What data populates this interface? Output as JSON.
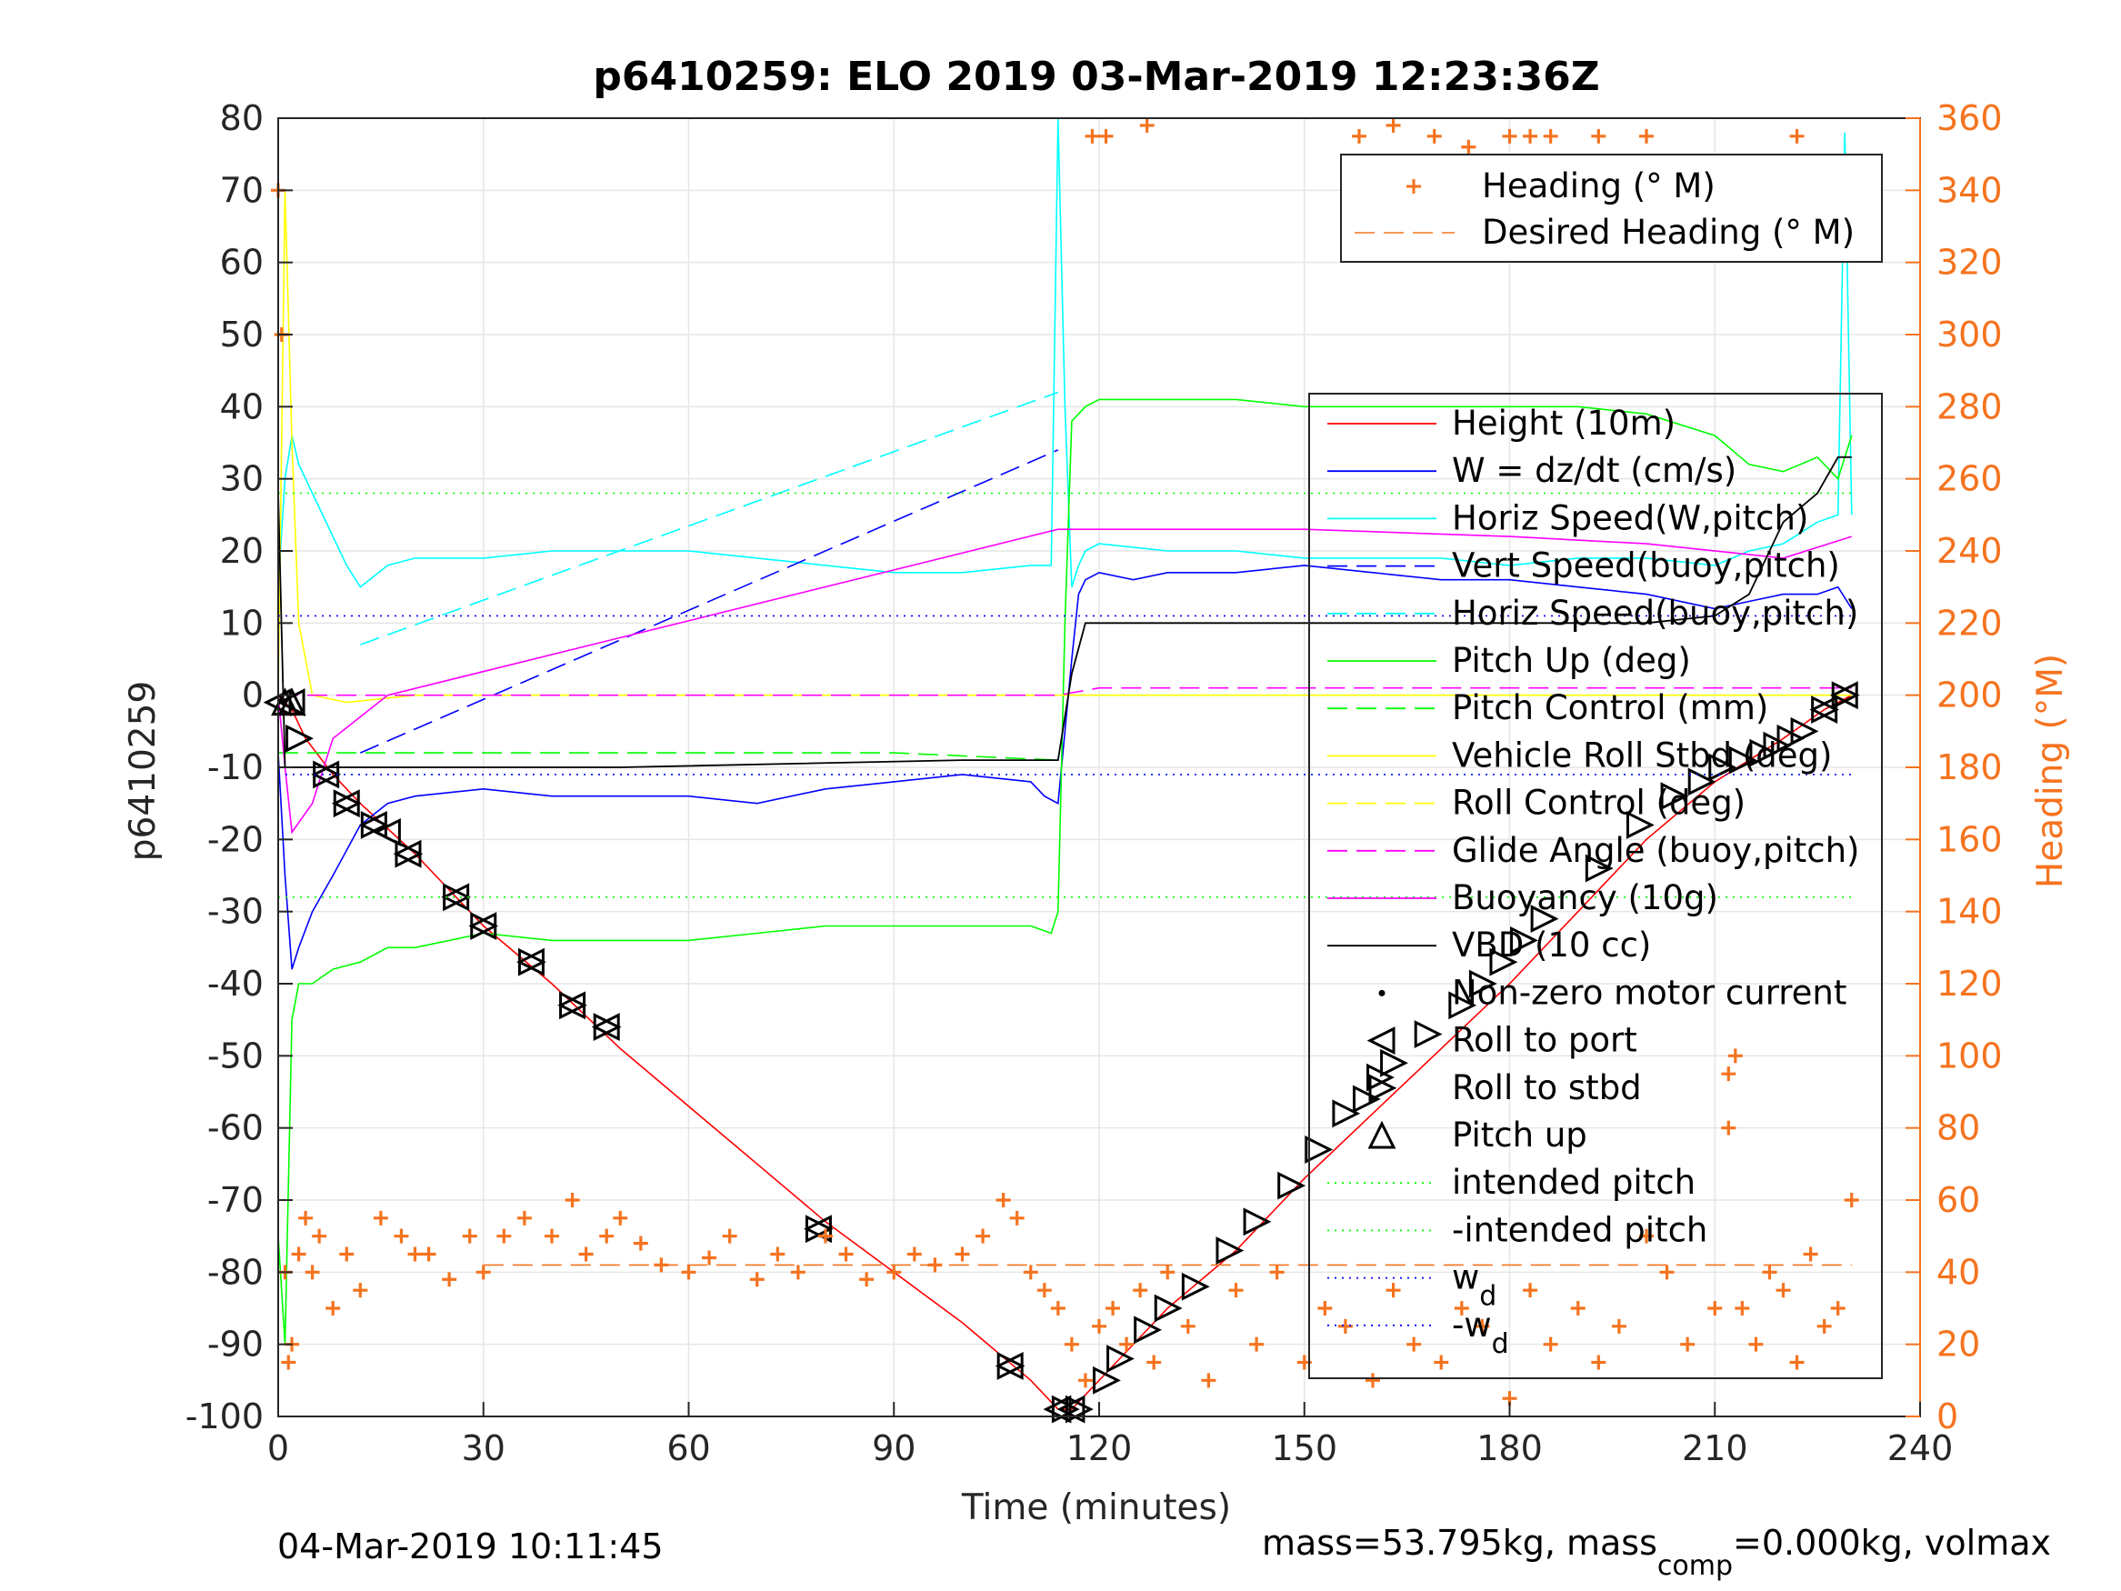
{
  "figure": {
    "title": "p6410259: ELO 2019 03-Mar-2019 12:23:36Z",
    "xlabel": "Time (minutes)",
    "ylabel_left": "p6410259",
    "ylabel_right": "Heading (°M)",
    "footer_left": "04-Mar-2019 10:11:45",
    "footer_right_main": "mass=53.795kg, mass",
    "footer_right_sub": "comp",
    "footer_right_tail": "=0.000kg, volmax",
    "colors": {
      "height": "#ff0000",
      "w": "#0000ff",
      "horiz_speed": "#00ffff",
      "pitch": "#00ff00",
      "roll": "#ffff00",
      "glide": "#ff00ff",
      "buoyancy": "#ff00ff",
      "vbd": "#000000",
      "heading": "#f5731f",
      "wd": "#0000ff",
      "intended_pitch": "#00ff00"
    }
  },
  "chart_data": {
    "type": "line",
    "grid": true,
    "xlim": [
      0,
      240
    ],
    "xticks": [
      0,
      30,
      60,
      90,
      120,
      150,
      180,
      210,
      240
    ],
    "ylim_left": [
      -100,
      80
    ],
    "yticks_left": [
      -100,
      -90,
      -80,
      -70,
      -60,
      -50,
      -40,
      -30,
      -20,
      -10,
      0,
      10,
      20,
      30,
      40,
      50,
      60,
      70,
      80
    ],
    "ylim_right": [
      0,
      360
    ],
    "yticks_right": [
      0,
      20,
      40,
      60,
      80,
      100,
      120,
      140,
      160,
      180,
      200,
      220,
      240,
      260,
      280,
      300,
      320,
      340,
      360
    ],
    "legend_heading": {
      "placement": "top-right",
      "entries": [
        "Heading (° M)",
        "Desired Heading (° M)"
      ]
    },
    "legend_main": {
      "placement": "right",
      "entries": [
        {
          "label": "Height (10m)",
          "color": "#ff0000",
          "style": "solid"
        },
        {
          "label": "W = dz/dt (cm/s)",
          "color": "#0000ff",
          "style": "solid"
        },
        {
          "label": "Horiz Speed(W,pitch)",
          "color": "#00ffff",
          "style": "solid"
        },
        {
          "label": "Vert Speed(buoy,pitch)",
          "color": "#0000ff",
          "style": "dashed"
        },
        {
          "label": "Horiz Speed(buoy,pitch)",
          "color": "#00ffff",
          "style": "dashed"
        },
        {
          "label": "Pitch Up (deg)",
          "color": "#00ff00",
          "style": "solid"
        },
        {
          "label": "Pitch Control (mm)",
          "color": "#00ff00",
          "style": "dashed"
        },
        {
          "label": "Vehicle Roll Stbd (deg)",
          "color": "#ffff00",
          "style": "solid"
        },
        {
          "label": "Roll Control (deg)",
          "color": "#ffff00",
          "style": "dashed"
        },
        {
          "label": "Glide Angle (buoy,pitch)",
          "color": "#ff00ff",
          "style": "dashed"
        },
        {
          "label": "Buoyancy (10g)",
          "color": "#ff00ff",
          "style": "solid"
        },
        {
          "label": "VBD (10 cc)",
          "color": "#000000",
          "style": "solid"
        },
        {
          "label": "Non-zero motor current",
          "color": "#000000",
          "style": "dot"
        },
        {
          "label": "Roll to port",
          "color": "#000000",
          "style": "tri-left"
        },
        {
          "label": "Roll to stbd",
          "color": "#000000",
          "style": "tri-right"
        },
        {
          "label": "Pitch up",
          "color": "#000000",
          "style": "tri-up"
        },
        {
          "label": "intended pitch",
          "color": "#00ff00",
          "style": "dotted"
        },
        {
          "label": "-intended pitch",
          "color": "#00ff00",
          "style": "dotted"
        },
        {
          "label": "w",
          "sub": "d",
          "color": "#0000ff",
          "style": "dotted"
        },
        {
          "label": "-w",
          "sub": "d",
          "color": "#0000ff",
          "style": "dotted"
        }
      ]
    },
    "series": [
      {
        "name": "Height (10m)",
        "x": [
          0,
          1,
          2,
          4,
          8,
          12,
          20,
          30,
          40,
          50,
          60,
          70,
          80,
          90,
          100,
          110,
          114,
          116,
          118,
          122,
          130,
          140,
          150,
          160,
          170,
          180,
          190,
          200,
          210,
          220,
          226,
          230
        ],
        "y": [
          0,
          -1,
          -2,
          -6,
          -11,
          -15,
          -22,
          -32,
          -40,
          -49,
          -57,
          -65,
          -73,
          -80,
          -87,
          -95,
          -99,
          -99,
          -97,
          -93,
          -85,
          -77,
          -67,
          -58,
          -49,
          -40,
          -30,
          -20,
          -12,
          -6,
          -2,
          0
        ]
      },
      {
        "name": "W = dz/dt (cm/s)",
        "x": [
          0,
          1,
          2,
          3,
          5,
          8,
          12,
          16,
          20,
          30,
          40,
          50,
          60,
          70,
          80,
          90,
          100,
          110,
          112,
          114,
          115,
          116,
          117,
          118,
          120,
          125,
          130,
          140,
          150,
          160,
          170,
          180,
          190,
          200,
          210,
          215,
          220,
          225,
          228,
          230
        ],
        "y": [
          -8,
          -25,
          -38,
          -35,
          -30,
          -25,
          -18,
          -15,
          -14,
          -13,
          -14,
          -14,
          -14,
          -15,
          -13,
          -12,
          -11,
          -12,
          -14,
          -15,
          -5,
          5,
          14,
          16,
          17,
          16,
          17,
          17,
          18,
          17,
          16,
          16,
          15,
          14,
          12,
          13,
          14,
          14,
          15,
          12
        ]
      },
      {
        "name": "Horiz Speed(W,pitch)",
        "x": [
          0,
          1,
          2,
          3,
          5,
          8,
          10,
          12,
          16,
          20,
          30,
          40,
          50,
          60,
          70,
          80,
          90,
          100,
          110,
          113,
          114,
          115,
          116,
          117,
          118,
          120,
          130,
          140,
          150,
          160,
          170,
          180,
          190,
          200,
          210,
          215,
          220,
          225,
          228,
          229,
          230
        ],
        "y": [
          15,
          30,
          36,
          32,
          28,
          22,
          18,
          15,
          18,
          19,
          19,
          20,
          20,
          20,
          19,
          18,
          17,
          17,
          18,
          18,
          80,
          40,
          15,
          18,
          20,
          21,
          20,
          20,
          19,
          19,
          19,
          18,
          19,
          19,
          18,
          20,
          21,
          24,
          25,
          78,
          25
        ]
      },
      {
        "name": "Vert Speed(buoy,pitch)",
        "x": [
          12,
          114
        ],
        "y": [
          -8,
          34
        ]
      },
      {
        "name": "Horiz Speed(buoy,pitch)",
        "x": [
          12,
          114
        ],
        "y": [
          7,
          42
        ]
      },
      {
        "name": "Pitch Up (deg)",
        "x": [
          0,
          1,
          2,
          3,
          5,
          8,
          12,
          16,
          20,
          30,
          40,
          50,
          60,
          70,
          80,
          90,
          100,
          110,
          113,
          114,
          115,
          116,
          118,
          120,
          130,
          140,
          150,
          160,
          170,
          180,
          190,
          200,
          210,
          215,
          220,
          225,
          228,
          230
        ],
        "y": [
          -75,
          -90,
          -45,
          -40,
          -40,
          -38,
          -37,
          -35,
          -35,
          -33,
          -34,
          -34,
          -34,
          -33,
          -32,
          -32,
          -32,
          -32,
          -33,
          -30,
          10,
          38,
          40,
          41,
          41,
          41,
          40,
          40,
          40,
          40,
          40,
          39,
          36,
          32,
          31,
          33,
          30,
          36
        ]
      },
      {
        "name": "Pitch Control (mm)",
        "x": [
          0,
          2,
          4,
          30,
          60,
          90,
          114
        ],
        "y": [
          -8,
          -8,
          -8,
          -8,
          -8,
          -8,
          -9
        ]
      },
      {
        "name": "Vehicle Roll Stbd (deg)",
        "x": [
          0,
          1,
          2,
          3,
          5,
          10,
          20,
          40,
          60,
          80,
          100,
          110,
          114,
          116,
          118,
          120,
          130,
          140,
          150,
          160,
          170,
          180,
          190,
          200,
          210,
          220,
          230
        ],
        "y": [
          0,
          70,
          35,
          10,
          0,
          -1,
          0,
          0,
          0,
          0,
          0,
          0,
          0,
          0,
          0,
          0,
          0,
          0,
          0,
          0,
          0,
          0,
          0,
          0,
          0,
          0,
          0
        ]
      },
      {
        "name": "Glide Angle (buoy,pitch)",
        "x": [
          0,
          10,
          50,
          100,
          114,
          120,
          160,
          200,
          230
        ],
        "y": [
          0,
          0,
          0,
          0,
          0,
          1,
          1,
          1,
          1
        ]
      },
      {
        "name": "Buoyancy (10g)",
        "x": [
          0,
          1,
          2,
          5,
          8,
          12,
          16,
          114,
          118,
          150,
          180,
          200,
          220,
          230
        ],
        "y": [
          0,
          -10,
          -19,
          -15,
          -6,
          -3,
          0,
          23,
          23,
          23,
          22,
          21,
          19,
          22
        ]
      },
      {
        "name": "VBD (10 cc)",
        "x": [
          0,
          1,
          2,
          10,
          50,
          100,
          114,
          116,
          118,
          120,
          150,
          180,
          200,
          210,
          215,
          220,
          225,
          228,
          230
        ],
        "y": [
          28,
          -10,
          -10,
          -10,
          -10,
          -9,
          -9,
          3,
          10,
          10,
          10,
          10,
          10,
          11,
          14,
          24,
          28,
          33,
          33
        ]
      },
      {
        "name": "Roll to port",
        "x": [
          0,
          2,
          7,
          10,
          14,
          16,
          19,
          26,
          30,
          37,
          43,
          48,
          79,
          107,
          114,
          116,
          226,
          229
        ],
        "y": [
          -1,
          -1,
          -11,
          -15,
          -18,
          -19,
          -22,
          -28,
          -32,
          -37,
          -43,
          -46,
          -74,
          -93,
          -99,
          -99,
          -2,
          0
        ]
      },
      {
        "name": "Roll to stbd",
        "x": [
          3,
          7,
          10,
          14,
          19,
          26,
          30,
          37,
          43,
          48,
          79,
          107,
          115,
          117,
          121,
          123,
          127,
          130,
          134,
          139,
          143,
          148,
          152,
          156,
          159,
          161,
          163,
          168,
          173,
          176,
          179,
          182,
          185,
          193,
          199,
          204,
          208,
          211,
          214,
          217,
          219,
          221,
          223,
          226,
          229
        ],
        "y": [
          -6,
          -11,
          -15,
          -18,
          -22,
          -28,
          -32,
          -37,
          -43,
          -46,
          -74,
          -93,
          -99,
          -99,
          -95,
          -92,
          -88,
          -85,
          -82,
          -77,
          -73,
          -68,
          -63,
          -58,
          -56,
          -53,
          -51,
          -47,
          -43,
          -40,
          -37,
          -34,
          -31,
          -24,
          -18,
          -14,
          -12,
          -10,
          -9,
          -8,
          -7,
          -6,
          -5,
          -2,
          0
        ]
      },
      {
        "name": "Pitch up",
        "x": [
          1,
          2
        ],
        "y": [
          -1,
          -1
        ]
      },
      {
        "name": "intended pitch",
        "x": [
          0,
          230
        ],
        "y": [
          28,
          28
        ]
      },
      {
        "name": "-intended pitch",
        "x": [
          0,
          230
        ],
        "y": [
          -28,
          -28
        ]
      },
      {
        "name": "wd",
        "x": [
          0,
          230
        ],
        "y": [
          11,
          11
        ]
      },
      {
        "name": "-wd",
        "x": [
          0,
          230
        ],
        "y": [
          -11,
          -11
        ]
      },
      {
        "name": "Desired Heading (° M)",
        "axis": "right",
        "x": [
          30,
          50,
          80,
          110,
          120,
          140,
          160,
          180,
          200,
          230
        ],
        "y": [
          42,
          42,
          42,
          42,
          42,
          42,
          42,
          42,
          42,
          42
        ]
      },
      {
        "name": "Heading (° M)",
        "axis": "right",
        "style": "plus",
        "x": [
          0,
          0.5,
          1,
          1.5,
          2,
          3,
          4,
          5,
          6,
          8,
          10,
          12,
          15,
          18,
          20,
          22,
          25,
          28,
          30,
          33,
          36,
          40,
          43,
          45,
          48,
          50,
          53,
          56,
          60,
          63,
          66,
          70,
          73,
          76,
          80,
          83,
          86,
          90,
          93,
          96,
          100,
          103,
          106,
          108,
          110,
          112,
          114,
          116,
          118,
          120,
          122,
          124,
          126,
          128,
          130,
          133,
          136,
          140,
          143,
          146,
          150,
          153,
          156,
          160,
          163,
          166,
          170,
          173,
          176,
          180,
          183,
          186,
          190,
          193,
          196,
          200,
          203,
          206,
          210,
          212,
          214,
          216,
          218,
          220,
          222,
          224,
          226,
          228,
          230,
          119,
          121,
          127,
          158,
          163,
          169,
          174,
          180,
          183,
          186,
          193,
          200,
          222,
          212,
          213
        ],
        "y": [
          340,
          300,
          40,
          15,
          20,
          45,
          55,
          40,
          50,
          30,
          45,
          35,
          55,
          50,
          45,
          45,
          38,
          50,
          40,
          50,
          55,
          50,
          60,
          45,
          50,
          55,
          48,
          42,
          40,
          44,
          50,
          38,
          45,
          40,
          50,
          45,
          38,
          40,
          45,
          42,
          45,
          50,
          60,
          55,
          40,
          35,
          30,
          20,
          10,
          25,
          30,
          20,
          35,
          15,
          40,
          25,
          10,
          35,
          20,
          40,
          15,
          30,
          25,
          10,
          35,
          20,
          15,
          30,
          25,
          5,
          35,
          20,
          30,
          15,
          25,
          50,
          40,
          20,
          30,
          80,
          30,
          20,
          40,
          35,
          15,
          45,
          25,
          30,
          60,
          355,
          355,
          358,
          355,
          358,
          355,
          352,
          355,
          355,
          355,
          355,
          355,
          355,
          95,
          100
        ]
      }
    ]
  }
}
